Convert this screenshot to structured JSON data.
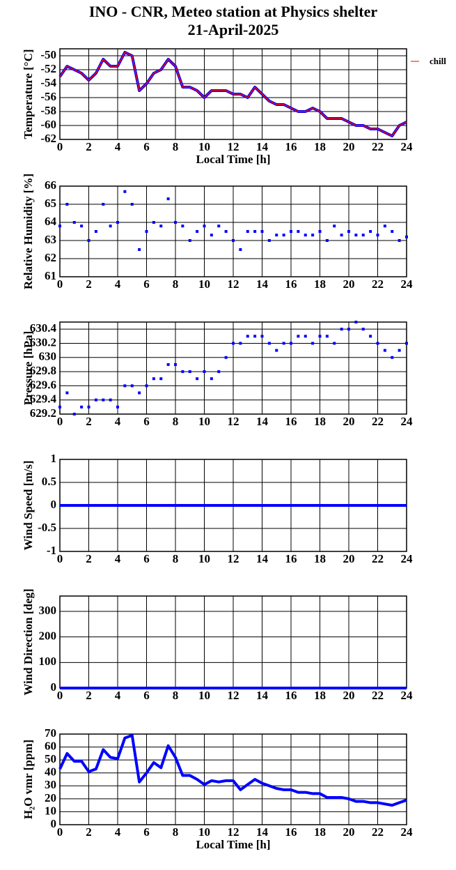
{
  "title": "INO - CNR, Meteo station at Physics shelter",
  "subtitle": "21-April-2025",
  "chart_data": [
    {
      "type": "line",
      "ylabel": "Temperature [°C]",
      "xlabel": "Local Time [h]",
      "legend": "right",
      "grid": true,
      "xlim": [
        0,
        24
      ],
      "xticks": [
        0,
        2,
        4,
        6,
        8,
        10,
        12,
        14,
        16,
        18,
        20,
        22,
        24
      ],
      "ylim": [
        -62,
        -49
      ],
      "yticks": [
        -62,
        -60,
        -58,
        -56,
        -54,
        -52,
        -50
      ],
      "x": [
        0,
        0.5,
        1,
        1.5,
        2,
        2.5,
        3,
        3.5,
        4,
        4.5,
        5,
        5.5,
        6,
        6.5,
        7,
        7.5,
        8,
        8.5,
        9,
        9.5,
        10,
        10.5,
        11,
        11.5,
        12,
        12.5,
        13,
        13.5,
        14,
        14.5,
        15,
        15.5,
        16,
        16.5,
        17,
        17.5,
        18,
        18.5,
        19,
        19.5,
        20,
        20.5,
        21,
        21.5,
        22,
        22.5,
        23,
        23.5,
        24
      ],
      "series": [
        {
          "color": "#0000ff",
          "values": [
            -53,
            -51.5,
            -52,
            -52.5,
            -53.5,
            -52.5,
            -50.5,
            -51.5,
            -51.5,
            -49.5,
            -50,
            -55,
            -54,
            -52.5,
            -52,
            -50.5,
            -51.5,
            -54.5,
            -54.5,
            -55,
            -56,
            -55,
            -55,
            -55,
            -55.5,
            -55.5,
            -56,
            -54.5,
            -55.5,
            -56.5,
            -57,
            -57,
            -57.5,
            -58,
            -58,
            -57.5,
            -58,
            -59,
            -59,
            -59,
            -59.5,
            -60,
            -60,
            -60.5,
            -60.5,
            -61,
            -61.5,
            -60,
            -59.5
          ]
        },
        {
          "name": "chill",
          "color": "#ff0000",
          "values": [
            -53,
            -51.5,
            -52,
            -52.5,
            -53.5,
            -52.5,
            -50.5,
            -51.5,
            -51.5,
            -49.5,
            -50,
            -55,
            -54,
            -52.5,
            -52,
            -50.5,
            -51.5,
            -54.5,
            -54.5,
            -55,
            -56,
            -55,
            -55,
            -55,
            -55.5,
            -55.5,
            -56,
            -54.5,
            -55.5,
            -56.5,
            -57,
            -57,
            -57.5,
            -58,
            -58,
            -57.5,
            -58,
            -59,
            -59,
            -59,
            -59.5,
            -60,
            -60,
            -60.5,
            -60.5,
            -61,
            -61.5,
            -60,
            -59.5
          ]
        }
      ]
    },
    {
      "type": "scatter",
      "ylabel": "Relative Humidity [%]",
      "grid": true,
      "xlim": [
        0,
        24
      ],
      "xticks": [
        0,
        2,
        4,
        6,
        8,
        10,
        12,
        14,
        16,
        18,
        20,
        22,
        24
      ],
      "ylim": [
        61,
        66
      ],
      "yticks": [
        61,
        62,
        63,
        64,
        65,
        66
      ],
      "x": [
        0,
        0.5,
        1,
        1.5,
        2,
        2.5,
        3,
        3.5,
        4,
        4.5,
        5,
        5.5,
        6,
        6.5,
        7,
        7.5,
        8,
        8.5,
        9,
        9.5,
        10,
        10.5,
        11,
        11.5,
        12,
        12.5,
        13,
        13.5,
        14,
        14.5,
        15,
        15.5,
        16,
        16.5,
        17,
        17.5,
        18,
        18.5,
        19,
        19.5,
        20,
        20.5,
        21,
        21.5,
        22,
        22.5,
        23,
        23.5,
        24
      ],
      "series": [
        {
          "color": "#0000ff",
          "values": [
            63.8,
            65,
            64,
            63.8,
            63,
            63.5,
            65,
            63.8,
            64,
            65.7,
            65,
            62.5,
            63.5,
            64,
            63.8,
            65.3,
            64,
            63.8,
            63,
            63.5,
            63.8,
            63.3,
            63.8,
            63.5,
            63,
            62.5,
            63.5,
            63.5,
            63.5,
            63,
            63.3,
            63.3,
            63.5,
            63.5,
            63.3,
            63.3,
            63.5,
            63,
            63.8,
            63.3,
            63.5,
            63.3,
            63.3,
            63.5,
            63.3,
            63.8,
            63.5,
            63,
            63.2
          ]
        }
      ]
    },
    {
      "type": "scatter",
      "ylabel": "Pressure [hPa]",
      "grid": true,
      "xlim": [
        0,
        24
      ],
      "xticks": [
        0,
        2,
        4,
        6,
        8,
        10,
        12,
        14,
        16,
        18,
        20,
        22,
        24
      ],
      "ylim": [
        629.2,
        630.5
      ],
      "yticks": [
        629.2,
        629.4,
        629.6,
        629.8,
        630,
        630.2,
        630.4
      ],
      "x": [
        0,
        0.5,
        1,
        1.5,
        2,
        2.5,
        3,
        3.5,
        4,
        4.5,
        5,
        5.5,
        6,
        6.5,
        7,
        7.5,
        8,
        8.5,
        9,
        9.5,
        10,
        10.5,
        11,
        11.5,
        12,
        12.5,
        13,
        13.5,
        14,
        14.5,
        15,
        15.5,
        16,
        16.5,
        17,
        17.5,
        18,
        18.5,
        19,
        19.5,
        20,
        20.5,
        21,
        21.5,
        22,
        22.5,
        23,
        23.5,
        24
      ],
      "series": [
        {
          "color": "#0000ff",
          "values": [
            629.3,
            629.5,
            629.2,
            629.3,
            629.3,
            629.4,
            629.4,
            629.4,
            629.3,
            629.6,
            629.6,
            629.5,
            629.6,
            629.7,
            629.7,
            629.9,
            629.9,
            629.8,
            629.8,
            629.7,
            629.8,
            629.7,
            629.8,
            630,
            630.2,
            630.2,
            630.3,
            630.3,
            630.3,
            630.2,
            630.1,
            630.2,
            630.2,
            630.3,
            630.3,
            630.2,
            630.3,
            630.3,
            630.2,
            630.4,
            630.4,
            630.5,
            630.4,
            630.3,
            630.2,
            630.1,
            630,
            630.1,
            630.2
          ]
        }
      ]
    },
    {
      "type": "line",
      "ylabel": "Wind Speed [m/s]",
      "grid": true,
      "xlim": [
        0,
        24
      ],
      "xticks": [
        0,
        2,
        4,
        6,
        8,
        10,
        12,
        14,
        16,
        18,
        20,
        22,
        24
      ],
      "ylim": [
        -1,
        1
      ],
      "yticks": [
        -1,
        -0.5,
        0,
        0.5,
        1
      ],
      "x": [
        0,
        24
      ],
      "series": [
        {
          "color": "#0000ff",
          "values": [
            0,
            0
          ]
        }
      ]
    },
    {
      "type": "line",
      "ylabel": "Wind Direction [deg]",
      "grid": true,
      "xlim": [
        0,
        24
      ],
      "xticks": [
        0,
        2,
        4,
        6,
        8,
        10,
        12,
        14,
        16,
        18,
        20,
        22,
        24
      ],
      "ylim": [
        0,
        360
      ],
      "yticks": [
        0,
        100,
        200,
        300
      ],
      "x": [
        0,
        24
      ],
      "series": [
        {
          "color": "#0000ff",
          "values": [
            0,
            0
          ]
        }
      ]
    },
    {
      "type": "line",
      "ylabel": "H₂O vmr [ppm]",
      "xlabel": "Local Time [h]",
      "grid": true,
      "xlim": [
        0,
        24
      ],
      "xticks": [
        0,
        2,
        4,
        6,
        8,
        10,
        12,
        14,
        16,
        18,
        20,
        22,
        24
      ],
      "ylim": [
        0,
        70
      ],
      "yticks": [
        0,
        10,
        20,
        30,
        40,
        50,
        60,
        70
      ],
      "x": [
        0,
        0.5,
        1,
        1.5,
        2,
        2.5,
        3,
        3.5,
        4,
        4.5,
        5,
        5.5,
        6,
        6.5,
        7,
        7.5,
        8,
        8.5,
        9,
        9.5,
        10,
        10.5,
        11,
        11.5,
        12,
        12.5,
        13,
        13.5,
        14,
        14.5,
        15,
        15.5,
        16,
        16.5,
        17,
        17.5,
        18,
        18.5,
        19,
        19.5,
        20,
        20.5,
        21,
        21.5,
        22,
        22.5,
        23,
        23.5,
        24
      ],
      "series": [
        {
          "color": "#0000ff",
          "values": [
            43,
            55,
            49,
            49,
            41,
            43,
            58,
            52,
            51,
            67,
            69,
            33,
            40,
            48,
            44,
            61,
            52,
            38,
            38,
            35,
            31,
            34,
            33,
            34,
            34,
            27,
            31,
            35,
            32,
            30,
            28,
            27,
            27,
            25,
            25,
            24,
            24,
            21,
            21,
            21,
            20,
            18,
            18,
            17,
            17,
            16,
            15,
            17,
            19
          ]
        }
      ]
    }
  ]
}
